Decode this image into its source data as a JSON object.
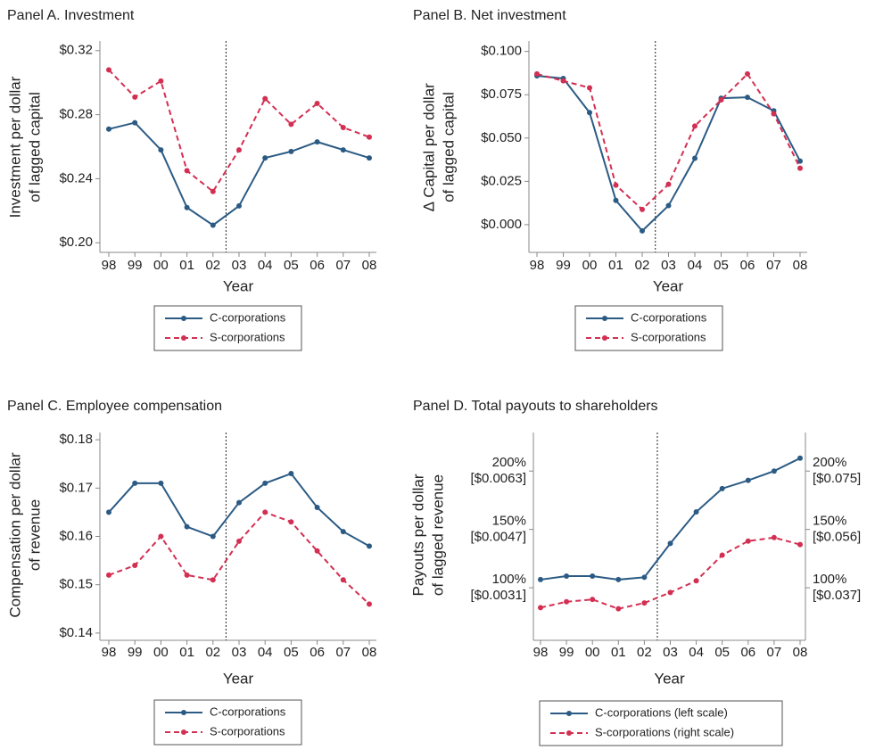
{
  "chart_data": [
    {
      "type": "line",
      "title": "Panel A. Investment",
      "xlabel": "Year",
      "ylabel": [
        "Investment per dollar",
        "of lagged capital"
      ],
      "categories": [
        "98",
        "99",
        "00",
        "01",
        "02",
        "03",
        "04",
        "05",
        "06",
        "07",
        "08"
      ],
      "series": [
        {
          "name": "C-corporations",
          "color": "#2b5b84",
          "dashed": false,
          "values": [
            0.271,
            0.275,
            0.258,
            0.222,
            0.211,
            0.223,
            0.253,
            0.257,
            0.263,
            0.258,
            0.253
          ]
        },
        {
          "name": "S-corporations",
          "color": "#d32f52",
          "dashed": true,
          "values": [
            0.308,
            0.291,
            0.301,
            0.245,
            0.232,
            0.258,
            0.29,
            0.274,
            0.287,
            0.272,
            0.266
          ]
        }
      ],
      "ylim": [
        0.194,
        0.326
      ],
      "yticks": [
        {
          "value": 0.2,
          "label": "$0.20"
        },
        {
          "value": 0.24,
          "label": "$0.24"
        },
        {
          "value": 0.28,
          "label": "$0.28"
        },
        {
          "value": 0.32,
          "label": "$0.32"
        }
      ]
    },
    {
      "type": "line",
      "title": "Panel B.  Net investment",
      "xlabel": "Year",
      "ylabel": [
        "∆ Capital per dollar",
        "of lagged capital"
      ],
      "categories": [
        "98",
        "99",
        "00",
        "01",
        "02",
        "03",
        "04",
        "05",
        "06",
        "07",
        "08"
      ],
      "series": [
        {
          "name": "C-corporations",
          "color": "#2b5b84",
          "dashed": false,
          "values": [
            0.0859,
            0.0844,
            0.0647,
            0.014,
            -0.0036,
            0.011,
            0.0383,
            0.073,
            0.0735,
            0.0657,
            0.0367
          ]
        },
        {
          "name": "S-corporations",
          "color": "#d32f52",
          "dashed": true,
          "values": [
            0.087,
            0.083,
            0.079,
            0.0228,
            0.0088,
            0.0233,
            0.0569,
            0.072,
            0.087,
            0.064,
            0.0326
          ]
        }
      ],
      "ylim": [
        -0.016,
        0.106
      ],
      "yticks": [
        {
          "value": 0,
          "label": "$0.000"
        },
        {
          "value": 0.025,
          "label": "$0.025"
        },
        {
          "value": 0.05,
          "label": "$0.050"
        },
        {
          "value": 0.075,
          "label": "$0.075"
        },
        {
          "value": 0.1,
          "label": "$0.100"
        }
      ]
    },
    {
      "type": "line",
      "title": "Panel C. Employee compensation",
      "xlabel": "Year",
      "ylabel": [
        "Compensation per dollar",
        "of revenue"
      ],
      "categories": [
        "98",
        "99",
        "00",
        "01",
        "02",
        "03",
        "04",
        "05",
        "06",
        "07",
        "08"
      ],
      "series": [
        {
          "name": "C-corporations",
          "color": "#2b5b84",
          "dashed": false,
          "values": [
            0.165,
            0.171,
            0.171,
            0.162,
            0.16,
            0.167,
            0.171,
            0.173,
            0.166,
            0.161,
            0.158
          ]
        },
        {
          "name": "S-corporations",
          "color": "#d32f52",
          "dashed": true,
          "values": [
            0.152,
            0.154,
            0.16,
            0.152,
            0.151,
            0.159,
            0.165,
            0.163,
            0.157,
            0.151,
            0.146
          ]
        }
      ],
      "ylim": [
        0.1385,
        0.1815
      ],
      "yticks": [
        {
          "value": 0.14,
          "label": "$0.14"
        },
        {
          "value": 0.15,
          "label": "$0.15"
        },
        {
          "value": 0.16,
          "label": "$0.16"
        },
        {
          "value": 0.17,
          "label": "$0.17"
        },
        {
          "value": 0.18,
          "label": "$0.18"
        }
      ]
    },
    {
      "type": "line",
      "title": "Panel D. Total payouts to shareholders",
      "xlabel": "Year",
      "ylabel": [
        "Payouts per dollar",
        "of lagged revenue"
      ],
      "categories": [
        "98",
        "99",
        "00",
        "01",
        "02",
        "03",
        "04",
        "05",
        "06",
        "07",
        "08"
      ],
      "series": [
        {
          "name": "C-corporations (left scale)",
          "color": "#2b5b84",
          "dashed": false,
          "values": [
            107,
            110,
            110,
            107,
            109,
            138,
            165,
            185,
            192,
            200,
            211
          ]
        },
        {
          "name": "S-corporations (right scale)",
          "color": "#d32f52",
          "dashed": true,
          "axis": "y2",
          "values": [
            83,
            88,
            90,
            82,
            87,
            96,
            106,
            128,
            140,
            143,
            137
          ]
        }
      ],
      "ylim": [
        55,
        233
      ],
      "yticks": [
        {
          "value": 100,
          "label": "100%",
          "label2": "[$0.0031]"
        },
        {
          "value": 150,
          "label": "150%",
          "label2": "[$0.0047]"
        },
        {
          "value": 200,
          "label": "200%",
          "label2": "[$0.0063]"
        }
      ],
      "y2lim": [
        55,
        233
      ],
      "y2ticks": [
        {
          "value": 100,
          "label": "100%",
          "label2": "[$0.037]"
        },
        {
          "value": 150,
          "label": "150%",
          "label2": "[$0.056]"
        },
        {
          "value": 200,
          "label": "200%",
          "label2": "[$0.075]"
        }
      ]
    }
  ]
}
